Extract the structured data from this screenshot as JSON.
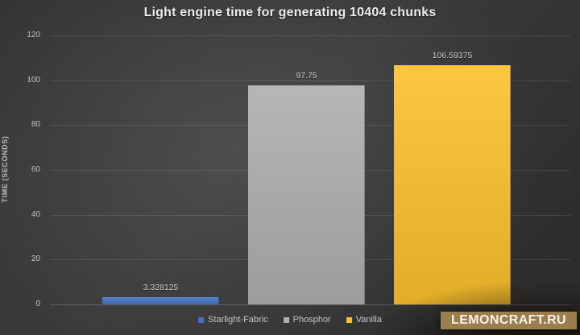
{
  "chart_data": {
    "type": "bar",
    "title": "Light engine time for generating 10404 chunks",
    "xlabel": "",
    "ylabel": "TIME (SECONDS)",
    "categories": [
      "Starlight-Fabric",
      "Phosphor",
      "Vanilla"
    ],
    "values": [
      3.328125,
      97.75,
      106.59375
    ],
    "value_labels": [
      "3.328125",
      "97.75",
      "106.59375"
    ],
    "series_colors": [
      "#4472c4",
      "#aeaeae",
      "#fbc02d"
    ],
    "ylim": [
      0,
      120
    ],
    "yticks": [
      0,
      20,
      40,
      60,
      80,
      100,
      120
    ],
    "grid": true,
    "legend_position": "bottom"
  },
  "watermark": {
    "label": "LEMONCRAFT.RU",
    "bg_color": "#9b7d4e"
  }
}
